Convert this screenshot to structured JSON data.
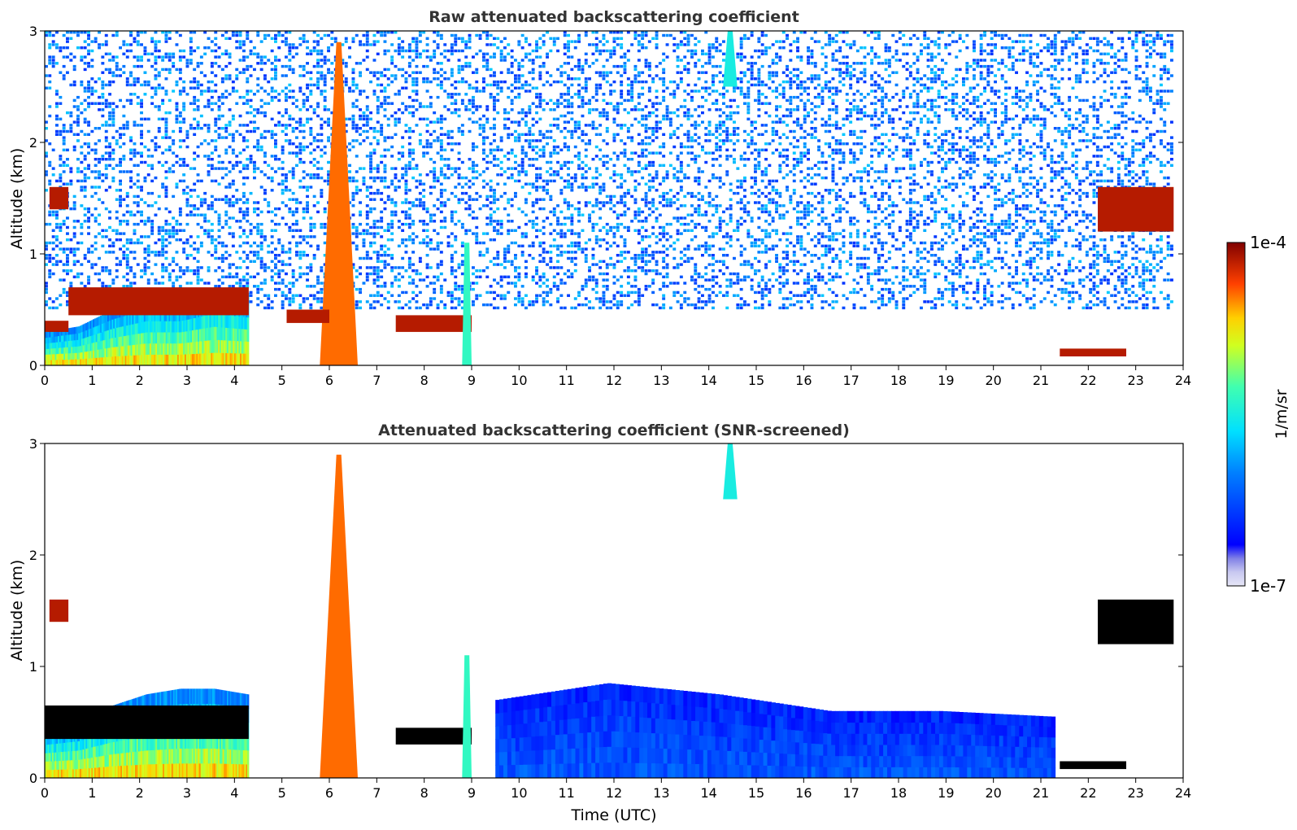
{
  "figure": {
    "colorbar": {
      "max_label": "1e-4",
      "min_label": "1e-7",
      "unit_label": "1/m/sr",
      "scale": "log",
      "range": [
        1e-07,
        0.0001
      ],
      "colormap": "jet",
      "low_colors": [
        "#e6e6f7",
        "#c8c8f0",
        "#a6a6ea",
        "#8080e6"
      ]
    }
  },
  "chart_data": [
    {
      "type": "heatmap",
      "title": "Raw attenuated backscattering coefficient",
      "xlabel": "",
      "ylabel": "Altitude (km)",
      "xlim": [
        0,
        24
      ],
      "ylim": [
        0,
        3
      ],
      "xticks": [
        "0",
        "1",
        "2",
        "3",
        "4",
        "5",
        "6",
        "7",
        "8",
        "9",
        "10",
        "11",
        "12",
        "13",
        "14",
        "15",
        "16",
        "17",
        "18",
        "19",
        "20",
        "21",
        "22",
        "23",
        "24"
      ],
      "yticks": [
        "0",
        "1",
        "2",
        "3"
      ],
      "features": [
        {
          "kind": "background_noise",
          "x": [
            0,
            23.8
          ],
          "y": [
            0.5,
            3.0
          ],
          "level": 0.38
        },
        {
          "kind": "boundary_layer",
          "x": [
            0,
            4.3
          ],
          "top": [
            0.3,
            0.35,
            0.5,
            0.6,
            0.6,
            0.7,
            0.65
          ],
          "value": 0.75
        },
        {
          "kind": "cloud_layer",
          "x": [
            0,
            0.5
          ],
          "y": [
            0.3,
            0.4
          ],
          "value": 0.95
        },
        {
          "kind": "cloud_layer",
          "x": [
            0.5,
            4.3
          ],
          "y": [
            0.45,
            0.7
          ],
          "value": 0.95
        },
        {
          "kind": "cloud_layer",
          "x": [
            0.1,
            0.5
          ],
          "y": [
            1.4,
            1.6
          ],
          "value": 0.95
        },
        {
          "kind": "plume",
          "x": [
            5.8,
            6.6
          ],
          "y": [
            0,
            2.9
          ],
          "value": 0.85
        },
        {
          "kind": "cloud_layer",
          "x": [
            5.1,
            6.0
          ],
          "y": [
            0.38,
            0.5
          ],
          "value": 0.95
        },
        {
          "kind": "cloud_layer",
          "x": [
            7.4,
            9.0
          ],
          "y": [
            0.3,
            0.45
          ],
          "value": 0.95
        },
        {
          "kind": "plume",
          "x": [
            8.8,
            9.0
          ],
          "y": [
            0,
            1.1
          ],
          "value": 0.55
        },
        {
          "kind": "cloud_layer",
          "x": [
            21.4,
            22.8
          ],
          "y": [
            0.08,
            0.15
          ],
          "value": 0.95
        },
        {
          "kind": "cloud_layer",
          "x": [
            22.2,
            23.8
          ],
          "y": [
            1.2,
            1.6
          ],
          "value": 0.95
        },
        {
          "kind": "plume",
          "x": [
            14.3,
            14.6
          ],
          "y": [
            2.5,
            3.0
          ],
          "value": 0.5
        }
      ]
    },
    {
      "type": "heatmap",
      "title": "Attenuated backscattering coefficient (SNR-screened)",
      "xlabel": "Time (UTC)",
      "ylabel": "Altitude (km)",
      "xlim": [
        0,
        24
      ],
      "ylim": [
        0,
        3
      ],
      "xticks": [
        "0",
        "1",
        "2",
        "3",
        "4",
        "5",
        "6",
        "7",
        "8",
        "9",
        "10",
        "11",
        "12",
        "13",
        "14",
        "15",
        "16",
        "17",
        "18",
        "19",
        "20",
        "21",
        "22",
        "23",
        "24"
      ],
      "yticks": [
        "0",
        "1",
        "2",
        "3"
      ],
      "features": [
        {
          "kind": "boundary_layer",
          "x": [
            0,
            4.3
          ],
          "top": [
            0.45,
            0.5,
            0.65,
            0.75,
            0.8,
            0.8,
            0.75
          ],
          "value": 0.75
        },
        {
          "kind": "cloud_layer",
          "x": [
            0,
            4.3
          ],
          "y": [
            0.35,
            0.65
          ],
          "value": 1.0,
          "color": "#000000"
        },
        {
          "kind": "cloud_layer",
          "x": [
            0.1,
            0.5
          ],
          "y": [
            1.4,
            1.6
          ],
          "value": 0.95
        },
        {
          "kind": "plume",
          "x": [
            5.8,
            6.6
          ],
          "y": [
            0,
            2.9
          ],
          "value": 0.85
        },
        {
          "kind": "cloud_layer",
          "x": [
            7.4,
            9.0
          ],
          "y": [
            0.3,
            0.45
          ],
          "value": 1.0,
          "color": "#000000"
        },
        {
          "kind": "plume",
          "x": [
            8.8,
            9.0
          ],
          "y": [
            0,
            1.1
          ],
          "value": 0.55
        },
        {
          "kind": "aerosol_layer",
          "x": [
            9.5,
            21.3
          ],
          "top": [
            0.7,
            0.85,
            0.75,
            0.6,
            0.6,
            0.55
          ],
          "value": 0.2
        },
        {
          "kind": "cloud_layer",
          "x": [
            21.4,
            22.8
          ],
          "y": [
            0.08,
            0.15
          ],
          "value": 1.0,
          "color": "#000000"
        },
        {
          "kind": "cloud_layer",
          "x": [
            22.2,
            23.8
          ],
          "y": [
            1.2,
            1.6
          ],
          "value": 1.0,
          "color": "#000000"
        },
        {
          "kind": "plume",
          "x": [
            14.3,
            14.6
          ],
          "y": [
            2.5,
            3.0
          ],
          "value": 0.5
        }
      ]
    }
  ]
}
